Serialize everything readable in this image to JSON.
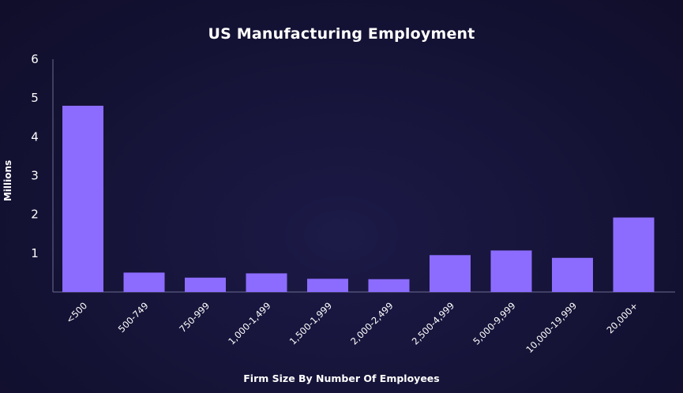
{
  "chart_data": {
    "type": "bar",
    "title": "US Manufacturing Employment",
    "xlabel": "Firm Size By Number Of Employees",
    "ylabel": "Millions",
    "categories": [
      "<500",
      "500-749",
      "750-999",
      "1,000-1,499",
      "1,500-1,999",
      "2,000-2,499",
      "2,500-4,999",
      "5,000-9,999",
      "10,000-19,999",
      "20,000+"
    ],
    "values": [
      4.8,
      0.5,
      0.37,
      0.48,
      0.34,
      0.33,
      0.95,
      1.07,
      0.88,
      1.92
    ],
    "ylim": [
      0,
      6
    ],
    "yticks": [
      1,
      2,
      3,
      4,
      5,
      6
    ],
    "grid": false,
    "bar_color": "#8c6cff",
    "axis_color": "#6b6a8f"
  }
}
